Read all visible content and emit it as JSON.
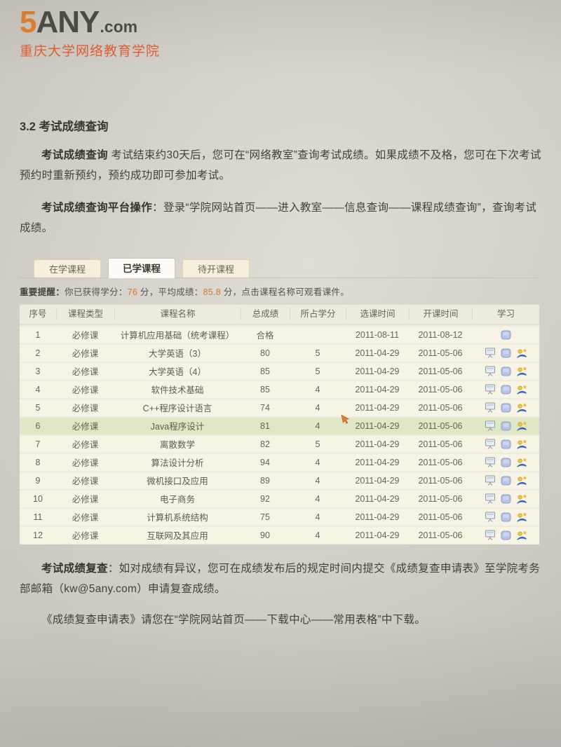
{
  "colors": {
    "brand_orange": "#e5812f",
    "brand_dark": "#4b5046",
    "subtitle_red": "#df5f33",
    "notice_number": "#d9782d",
    "row_highlight": "#dfe7c4",
    "row_bg": "#f7f4e6",
    "tab_active_bg": "#fdfcf7",
    "tab_inactive_bg": "#f7efdd"
  },
  "header": {
    "logo_prefix": "5",
    "logo_main": "ANY",
    "logo_suffix": ".com",
    "subtitle": "重庆大学网络教育学院"
  },
  "document": {
    "section_title": "3.2 考试成绩查询",
    "para1_bold": "考试成绩查询",
    "para1_text": " 考试结束约30天后，您可在“网络教室”查询考试成绩。如果成绩不及格，您可在下次考试预约时重新预约，预约成功即可参加考试。",
    "para2_bold": "考试成绩查询平台操作",
    "para2_text": "：登录“学院网站首页——进入教室——信息查询——课程成绩查询”，查询考试成绩。",
    "para3_bold": "考试成绩复查",
    "para3_text": "：如对成绩有异议，您可在成绩发布后的规定时间内提交《成绩复查申请表》至学院考务部邮箱（kw@5any.com）申请复查成绩。",
    "para4_text": "《成绩复查申请表》请您在“学院网站首页——下载中心——常用表格”中下载。"
  },
  "webapp": {
    "tabs": [
      {
        "label": "在学课程",
        "active": false
      },
      {
        "label": "已学课程",
        "active": true
      },
      {
        "label": "待开课程",
        "active": false
      }
    ],
    "notice": {
      "label": "重要提醒：",
      "part1": "你已获得学分：",
      "credits": "76",
      "part2": " 分，平均成绩：",
      "average": "85.8",
      "part3": " 分，点击课程名称可观看课件。"
    },
    "table": {
      "columns": [
        "序号",
        "课程类型",
        "课程名称",
        "总成绩",
        "所占学分",
        "选课时间",
        "开课时间",
        "学习"
      ],
      "rows": [
        {
          "no": "1",
          "type": "必修课",
          "name": "计算机应用基础（统考课程）",
          "score": "合格",
          "credit": "",
          "select_date": "2011-08-11",
          "start_date": "2011-08-12",
          "icons": [
            "disk-icon"
          ],
          "highlighted": false
        },
        {
          "no": "2",
          "type": "必修课",
          "name": "大学英语（3）",
          "score": "80",
          "credit": "5",
          "select_date": "2011-04-29",
          "start_date": "2011-05-06",
          "icons": [
            "screen-icon",
            "disk-icon",
            "courseware-icon"
          ],
          "highlighted": false
        },
        {
          "no": "3",
          "type": "必修课",
          "name": "大学英语（4）",
          "score": "85",
          "credit": "5",
          "select_date": "2011-04-29",
          "start_date": "2011-05-06",
          "icons": [
            "screen-icon",
            "disk-icon",
            "courseware-icon"
          ],
          "highlighted": false
        },
        {
          "no": "4",
          "type": "必修课",
          "name": "软件技术基础",
          "score": "85",
          "credit": "4",
          "select_date": "2011-04-29",
          "start_date": "2011-05-06",
          "icons": [
            "screen-icon",
            "disk-icon",
            "courseware-icon"
          ],
          "highlighted": false
        },
        {
          "no": "5",
          "type": "必修课",
          "name": "C++程序设计语言",
          "score": "74",
          "credit": "4",
          "select_date": "2011-04-29",
          "start_date": "2011-05-06",
          "icons": [
            "screen-icon",
            "disk-icon",
            "courseware-icon"
          ],
          "highlighted": false
        },
        {
          "no": "6",
          "type": "必修课",
          "name": "Java程序设计",
          "score": "81",
          "credit": "4",
          "select_date": "2011-04-29",
          "start_date": "2011-05-06",
          "icons": [
            "screen-icon",
            "disk-icon",
            "courseware-icon"
          ],
          "highlighted": true
        },
        {
          "no": "7",
          "type": "必修课",
          "name": "离散数学",
          "score": "82",
          "credit": "5",
          "select_date": "2011-04-29",
          "start_date": "2011-05-06",
          "icons": [
            "screen-icon",
            "disk-icon",
            "courseware-icon"
          ],
          "highlighted": false
        },
        {
          "no": "8",
          "type": "必修课",
          "name": "算法设计分析",
          "score": "94",
          "credit": "4",
          "select_date": "2011-04-29",
          "start_date": "2011-05-06",
          "icons": [
            "screen-icon",
            "disk-icon",
            "courseware-icon"
          ],
          "highlighted": false
        },
        {
          "no": "9",
          "type": "必修课",
          "name": "微机接口及应用",
          "score": "89",
          "credit": "4",
          "select_date": "2011-04-29",
          "start_date": "2011-05-06",
          "icons": [
            "screen-icon",
            "disk-icon",
            "courseware-icon"
          ],
          "highlighted": false
        },
        {
          "no": "10",
          "type": "必修课",
          "name": "电子商务",
          "score": "92",
          "credit": "4",
          "select_date": "2011-04-29",
          "start_date": "2011-05-06",
          "icons": [
            "screen-icon",
            "disk-icon",
            "courseware-icon"
          ],
          "highlighted": false
        },
        {
          "no": "11",
          "type": "必修课",
          "name": "计算机系统结构",
          "score": "75",
          "credit": "4",
          "select_date": "2011-04-29",
          "start_date": "2011-05-06",
          "icons": [
            "screen-icon",
            "disk-icon",
            "courseware-icon"
          ],
          "highlighted": false
        },
        {
          "no": "12",
          "type": "必修课",
          "name": "互联网及其应用",
          "score": "90",
          "credit": "4",
          "select_date": "2011-04-29",
          "start_date": "2011-05-06",
          "icons": [
            "screen-icon",
            "disk-icon",
            "courseware-icon"
          ],
          "highlighted": false
        }
      ]
    }
  }
}
